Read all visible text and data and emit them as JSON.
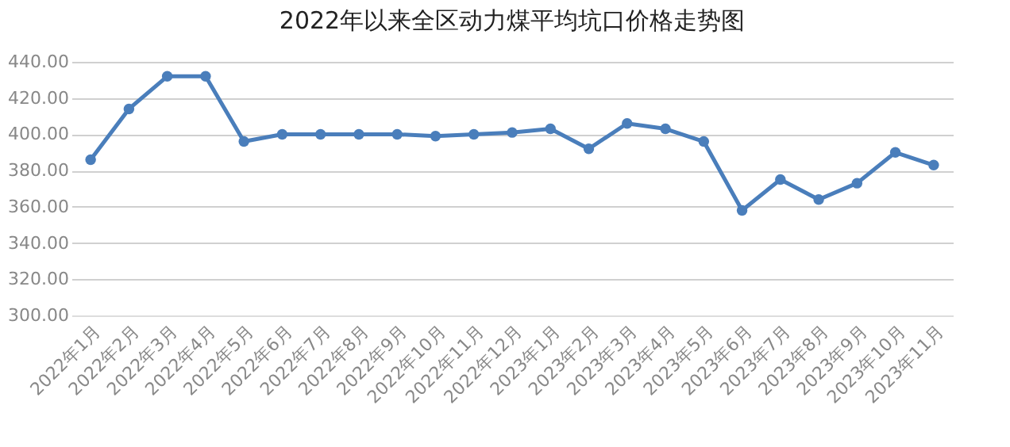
{
  "chart_data": {
    "type": "line",
    "title": "2022年以来全区动力煤平均坑口价格走势图",
    "categories": [
      "2022年1月",
      "2022年2月",
      "2022年3月",
      "2022年4月",
      "2022年5月",
      "2022年6月",
      "2022年7月",
      "2022年8月",
      "2022年9月",
      "2022年10月",
      "2022年11月",
      "2022年12月",
      "2023年1月",
      "2023年2月",
      "2023年3月",
      "2023年4月",
      "2023年5月",
      "2023年6月",
      "2023年7月",
      "2023年8月",
      "2023年9月",
      "2023年10月",
      "2023年11月"
    ],
    "series": [
      {
        "color": "#4a7ebb",
        "values": [
          386,
          414,
          432,
          432,
          396,
          400,
          400,
          400,
          400,
          399,
          400,
          401,
          403,
          392,
          406,
          403,
          396,
          358,
          375,
          364,
          373,
          390,
          383
        ]
      }
    ],
    "ylim": [
      300,
      440
    ],
    "yticks": [
      {
        "value": 300,
        "label": "300.00"
      },
      {
        "value": 320,
        "label": "320.00"
      },
      {
        "value": 340,
        "label": "340.00"
      },
      {
        "value": 360,
        "label": "360.00"
      },
      {
        "value": 380,
        "label": "380.00"
      },
      {
        "value": 400,
        "label": "400.00"
      },
      {
        "value": 420,
        "label": "420.00"
      },
      {
        "value": 440,
        "label": "440.00"
      }
    ],
    "grid": "y",
    "marker": "circle",
    "line_style": "solid"
  }
}
